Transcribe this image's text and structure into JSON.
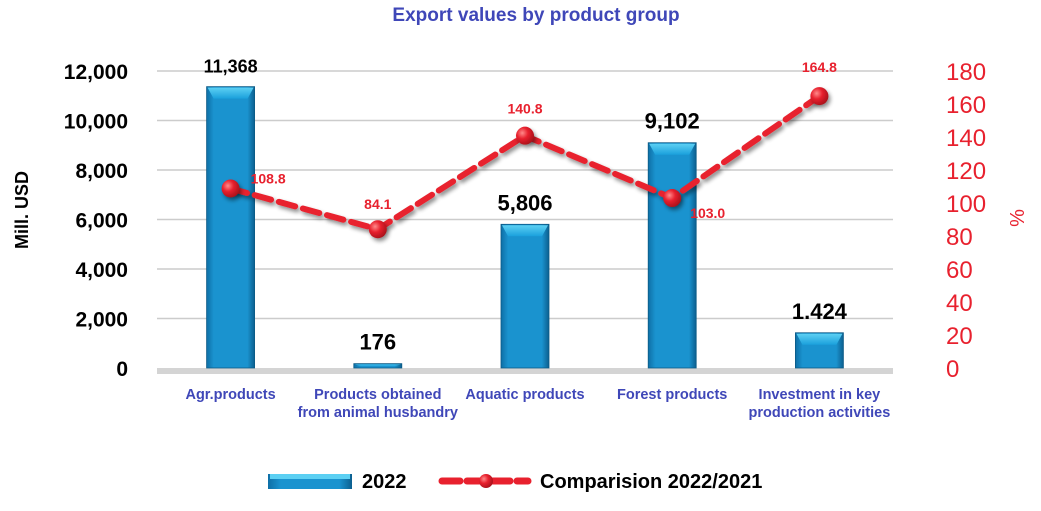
{
  "chart_data": {
    "type": "bar",
    "title": "Export values by product group",
    "categories": [
      "Agr.products",
      "Products obtained from animal husbandry",
      "Aquatic products",
      "Forest products",
      "Investment in key production activities"
    ],
    "category_lines": [
      [
        "Agr.products"
      ],
      [
        "Products obtained",
        "from animal husbandry"
      ],
      [
        "Aquatic products"
      ],
      [
        "Forest products"
      ],
      [
        "Investment in key",
        "production activities"
      ]
    ],
    "series": [
      {
        "name": "2022",
        "type": "bar",
        "axis": "left",
        "values": [
          11368,
          176,
          5806,
          9102,
          1424
        ],
        "labels": [
          "11,368",
          "176",
          "5,806",
          "9,102",
          "1.424"
        ],
        "color": "#1a93cf"
      },
      {
        "name": "Comparision 2022/2021",
        "type": "line",
        "axis": "right",
        "values": [
          108.8,
          84.1,
          140.8,
          103.0,
          164.8
        ],
        "labels": [
          "108.8",
          "84.1",
          "140.8",
          "103.0",
          "164.8"
        ],
        "color": "#e8212e"
      }
    ],
    "ylabel": "Mill. USD",
    "y2label": "%",
    "ylim": [
      0,
      12000
    ],
    "y2lim": [
      0,
      180
    ],
    "yticks": [
      0,
      2000,
      4000,
      6000,
      8000,
      10000,
      12000
    ],
    "ytick_labels": [
      "0",
      "2,000",
      "4,000",
      "6,000",
      "8,000",
      "10,000",
      "12,000"
    ],
    "y2ticks": [
      0,
      20,
      40,
      60,
      80,
      100,
      120,
      140,
      160,
      180
    ],
    "y2tick_labels": [
      "0",
      "20",
      "40",
      "60",
      "80",
      "100",
      "120",
      "140",
      "160",
      "180"
    ],
    "grid": true,
    "legend_position": "bottom",
    "colors": {
      "title": "#3f47b8",
      "bar": "#1a93cf",
      "line": "#e8212e",
      "grid": "#cccccc",
      "axis": "#d4d4d4"
    }
  }
}
